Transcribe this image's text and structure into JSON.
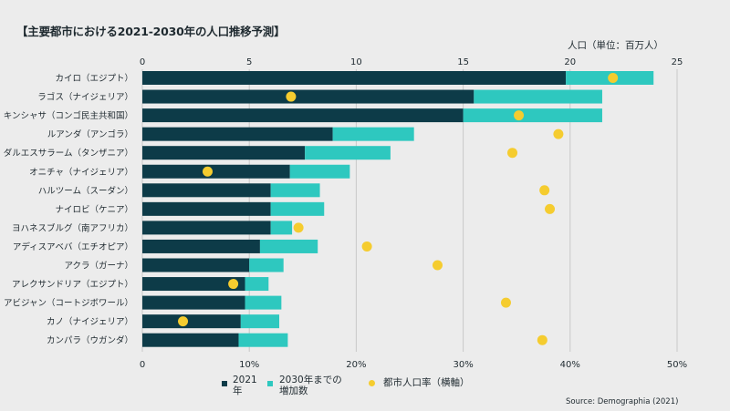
{
  "header": {
    "title": "【主要都市における2021-2030年の人口推移予測】",
    "unit": "人口（単位：百万人）",
    "source": "Source: Demographia (2021)"
  },
  "legend": {
    "pop2021": "2021\n年",
    "increase": "2030年までの\n増加数",
    "urban": "都市人口率（横軸）"
  },
  "colors": {
    "pop2021": "#0d3b48",
    "increase": "#2ec8bf",
    "urban": "#f5cc2f",
    "grid": "#c8c8c8"
  },
  "chart_data": {
    "type": "bar",
    "stacked": true,
    "orientation": "horizontal",
    "title": "【主要都市における2021-2030年の人口推移予測】",
    "top_axis": {
      "label": "人口（単位：百万人）",
      "range": [
        0,
        25
      ],
      "ticks": [
        "0",
        "5",
        "10",
        "15",
        "20",
        "25"
      ]
    },
    "bottom_axis": {
      "label": "都市人口率（横軸）",
      "range": [
        0,
        50
      ],
      "ticks": [
        "0",
        "10%",
        "20%",
        "30%",
        "40%",
        "50%"
      ]
    },
    "categories": [
      "カイロ（エジプト）",
      "ラゴス（ナイジェリア）",
      "キンシャサ（コンゴ民主共和国）",
      "ルアンダ（アンゴラ）",
      "ダルエスサラーム（タンザニア）",
      "オニチャ（ナイジェリア）",
      "ハルツーム（スーダン）",
      "ナイロビ（ケニア）",
      "ヨハネスブルグ（南アフリカ）",
      "アディスアベバ（エチオピア）",
      "アクラ（ガーナ）",
      "アレクサンドリア（エジプト）",
      "アビジャン（コートジボワール）",
      "カノ（ナイジェリア）",
      "カンパラ（ウガンダ）"
    ],
    "series": [
      {
        "name": "2021\n年",
        "values": [
          19.8,
          15.5,
          15.0,
          8.9,
          7.6,
          6.9,
          6.0,
          6.0,
          6.0,
          5.5,
          5.0,
          4.8,
          4.8,
          4.6,
          4.5
        ]
      },
      {
        "name": "2030年までの\n増加数",
        "values": [
          4.1,
          6.0,
          6.5,
          3.8,
          4.0,
          2.8,
          2.3,
          2.5,
          1.0,
          2.7,
          1.6,
          1.1,
          1.7,
          1.8,
          2.3
        ]
      },
      {
        "name": "都市人口率（横軸）",
        "values": [
          44.0,
          13.9,
          35.2,
          38.9,
          34.6,
          6.1,
          37.6,
          38.1,
          14.6,
          21.0,
          27.6,
          8.5,
          34.0,
          3.8,
          37.4
        ]
      }
    ],
    "grid": true,
    "legend_position": "bottom"
  }
}
